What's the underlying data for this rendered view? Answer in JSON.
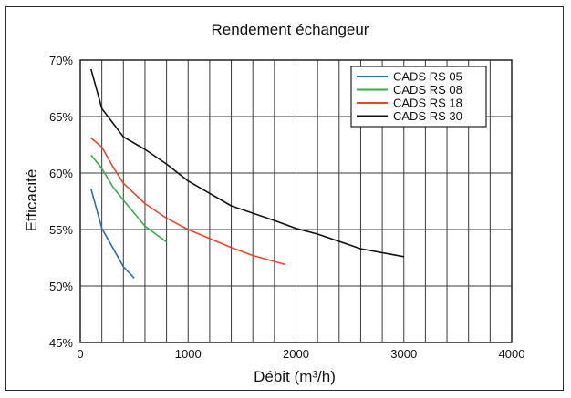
{
  "chart_data": {
    "type": "line",
    "title": "Rendement échangeur",
    "xlabel": "Débit (m³/h)",
    "ylabel": "Efficacité",
    "xlim": [
      0,
      4000
    ],
    "ylim": [
      45,
      70
    ],
    "x_ticks": [
      0,
      1000,
      2000,
      3000,
      4000
    ],
    "y_ticks": [
      45,
      50,
      55,
      60,
      65,
      70
    ],
    "y_tick_labels": [
      "45%",
      "50%",
      "55%",
      "60%",
      "65%",
      "70%"
    ],
    "x_tick_labels": [
      "0",
      "1000",
      "2000",
      "3000",
      "4000"
    ],
    "grid": true,
    "legend_position": "top-right",
    "series": [
      {
        "name": "CADS RS 05",
        "color": "#2a6db5",
        "x": [
          100,
          200,
          300,
          400,
          500
        ],
        "y": [
          58.6,
          55.1,
          53.4,
          51.7,
          50.7
        ]
      },
      {
        "name": "CADS RS 08",
        "color": "#3aaa4a",
        "x": [
          100,
          200,
          300,
          400,
          600,
          800
        ],
        "y": [
          61.6,
          60.4,
          58.8,
          57.6,
          55.3,
          53.9
        ]
      },
      {
        "name": "CADS RS 18",
        "color": "#e8452e",
        "x": [
          100,
          200,
          300,
          400,
          600,
          800,
          1000,
          1200,
          1400,
          1600,
          1900
        ],
        "y": [
          63.1,
          62.3,
          60.6,
          59.1,
          57.3,
          56.0,
          55.0,
          54.2,
          53.4,
          52.7,
          51.9
        ]
      },
      {
        "name": "CADS RS 30",
        "color": "#111111",
        "x": [
          100,
          200,
          400,
          600,
          800,
          1000,
          1200,
          1400,
          1800,
          2000,
          2200,
          2600,
          3000
        ],
        "y": [
          69.2,
          65.7,
          63.2,
          62.1,
          60.8,
          59.3,
          58.2,
          57.1,
          55.8,
          55.1,
          54.6,
          53.3,
          52.6
        ]
      }
    ]
  }
}
